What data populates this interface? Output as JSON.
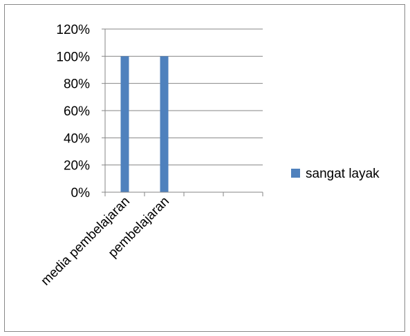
{
  "chart_data": {
    "type": "bar",
    "categories": [
      "media pembelajaran",
      "pembelajaran",
      "",
      ""
    ],
    "series": [
      {
        "name": "sangat layak",
        "values": [
          1.0,
          1.0,
          null,
          null
        ],
        "color": "#4F81BD"
      }
    ],
    "yticks": [
      "0%",
      "20%",
      "40%",
      "60%",
      "80%",
      "100%",
      "120%"
    ],
    "ylim": [
      0,
      1.2
    ],
    "ytick_step": 0.2,
    "grid": true,
    "legend_position": "right",
    "title": "",
    "xlabel": "",
    "ylabel": ""
  },
  "colors": {
    "gridline": "#868686",
    "axis": "#868686",
    "frame": "#888888"
  }
}
